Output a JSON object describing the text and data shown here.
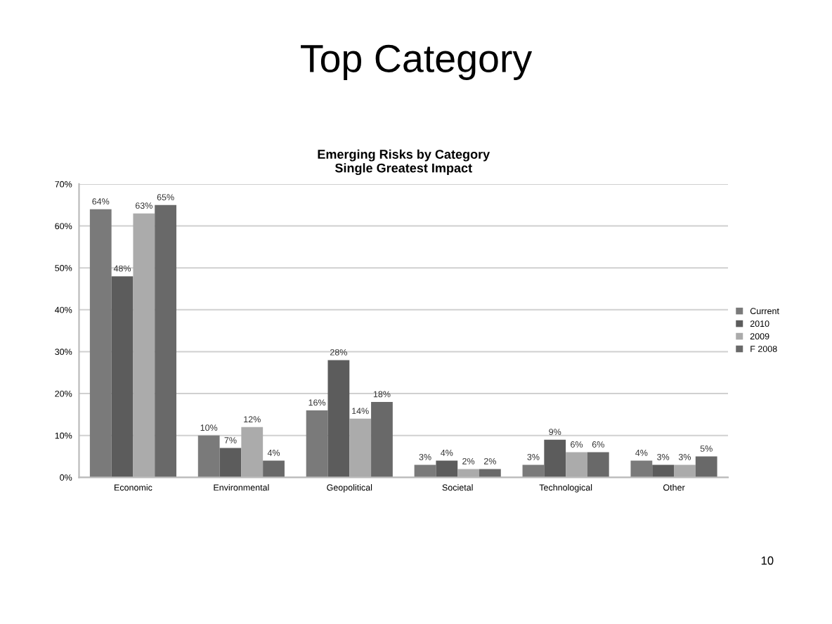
{
  "chart_data": {
    "type": "bar",
    "title": "Top Category",
    "subtitle": "Emerging Risks by Category\nSingle Greatest Impact",
    "categories": [
      "Economic",
      "Environmental",
      "Geopolitical",
      "Societal",
      "Technological",
      "Other"
    ],
    "series": [
      {
        "name": "Current",
        "color": "#7a7a7a",
        "values": [
          64,
          10,
          16,
          3,
          3,
          4
        ],
        "value_labels": [
          "64%",
          "10%",
          "16%",
          "3%",
          "3%",
          "4%"
        ]
      },
      {
        "name": "2010",
        "color": "#5c5c5c",
        "values": [
          48,
          7,
          28,
          4,
          9,
          3
        ],
        "value_labels": [
          "48%",
          "7%",
          "28%",
          "4%",
          "9%",
          "3%"
        ]
      },
      {
        "name": "2009",
        "color": "#ababab",
        "values": [
          63,
          12,
          14,
          2,
          6,
          3
        ],
        "value_labels": [
          "63%",
          "12%",
          "14%",
          "2%",
          "6%",
          "3%"
        ]
      },
      {
        "name": "F 2008",
        "color": "#696969",
        "values": [
          65,
          4,
          18,
          2,
          6,
          5
        ],
        "value_labels": [
          "65%",
          "4%",
          "18%",
          "2%",
          "6%",
          "5%"
        ]
      }
    ],
    "ylim": [
      0,
      70
    ],
    "yticks": [
      {
        "value": 0,
        "label": "0%"
      },
      {
        "value": 10,
        "label": "10%"
      },
      {
        "value": 20,
        "label": "20%"
      },
      {
        "value": 30,
        "label": "30%"
      },
      {
        "value": 40,
        "label": "40%"
      },
      {
        "value": 50,
        "label": "50%"
      },
      {
        "value": 60,
        "label": "60%"
      },
      {
        "value": 70,
        "label": "70%"
      }
    ],
    "grid": "y",
    "legend": "right",
    "annotations": [
      "10"
    ]
  }
}
